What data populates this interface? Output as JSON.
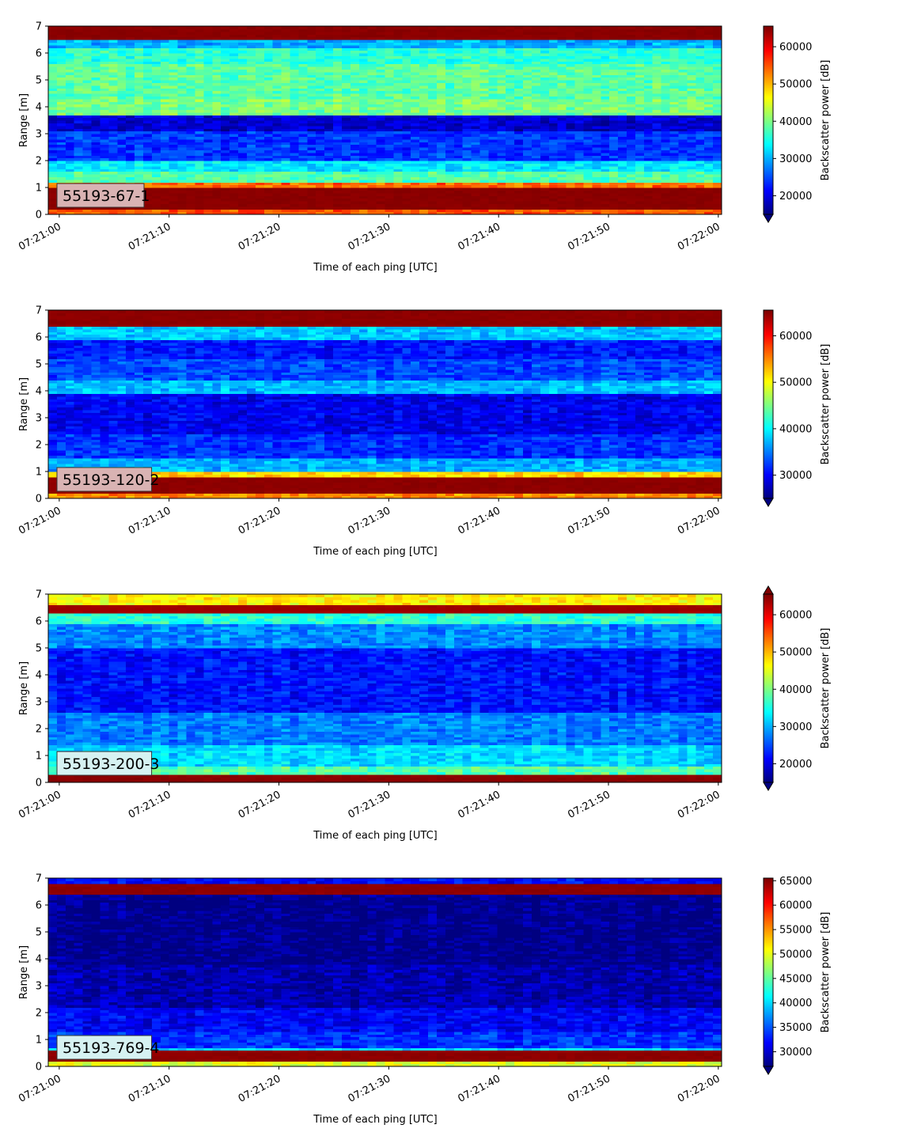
{
  "chart_data": [
    {
      "type": "heatmap",
      "panel_label": "55193-67-1",
      "label_box_color": "#d9b3b3",
      "xlabel": "Time of each ping [UTC]",
      "ylabel": "Range [m]",
      "ylim": [
        0,
        7
      ],
      "yticks": [
        0,
        1,
        2,
        3,
        4,
        5,
        6,
        7
      ],
      "xticks": [
        "07:21:00",
        "07:21:10",
        "07:21:20",
        "07:21:30",
        "07:21:40",
        "07:21:50",
        "07:22:00"
      ],
      "xrange_seconds": [
        -1,
        60.3
      ],
      "colorbar_label": "Backscatter power [dB]",
      "colorbar_range": [
        15000,
        65535
      ],
      "colorbar_ticks": [
        20000,
        30000,
        40000,
        50000,
        60000
      ],
      "colorbar_extend": "min",
      "colormap": "jet",
      "grid": false,
      "bands": [
        {
          "from": 0.0,
          "to": 0.2,
          "value": 55000
        },
        {
          "from": 0.2,
          "to": 1.05,
          "value": 65000
        },
        {
          "from": 1.05,
          "to": 1.25,
          "value": 54000
        },
        {
          "from": 1.25,
          "to": 1.6,
          "value": 38000
        },
        {
          "from": 1.6,
          "to": 2.0,
          "value": 33000
        },
        {
          "from": 2.0,
          "to": 3.1,
          "value": 24000
        },
        {
          "from": 3.1,
          "to": 3.7,
          "value": 19000
        },
        {
          "from": 3.7,
          "to": 4.3,
          "value": 40000
        },
        {
          "from": 4.3,
          "to": 5.6,
          "value": 38500
        },
        {
          "from": 5.6,
          "to": 6.2,
          "value": 36000
        },
        {
          "from": 6.2,
          "to": 6.45,
          "value": 30000
        },
        {
          "from": 6.45,
          "to": 7.0,
          "value": 65000
        }
      ]
    },
    {
      "type": "heatmap",
      "panel_label": "55193-120-2",
      "label_box_color": "#d9b3b3",
      "xlabel": "Time of each ping [UTC]",
      "ylabel": "Range [m]",
      "ylim": [
        0,
        7
      ],
      "yticks": [
        0,
        1,
        2,
        3,
        4,
        5,
        6,
        7
      ],
      "xticks": [
        "07:21:00",
        "07:21:10",
        "07:21:20",
        "07:21:30",
        "07:21:40",
        "07:21:50",
        "07:22:00"
      ],
      "xrange_seconds": [
        -1,
        60.3
      ],
      "colorbar_label": "Backscatter power [dB]",
      "colorbar_range": [
        25000,
        65535
      ],
      "colorbar_ticks": [
        30000,
        40000,
        50000,
        60000
      ],
      "colorbar_extend": "min",
      "colormap": "jet",
      "grid": false,
      "bands": [
        {
          "from": 0.0,
          "to": 0.2,
          "value": 55000
        },
        {
          "from": 0.2,
          "to": 0.8,
          "value": 65000
        },
        {
          "from": 0.8,
          "to": 1.0,
          "value": 52000
        },
        {
          "from": 1.0,
          "to": 1.5,
          "value": 37000
        },
        {
          "from": 1.5,
          "to": 2.4,
          "value": 32000
        },
        {
          "from": 2.4,
          "to": 3.9,
          "value": 29500
        },
        {
          "from": 3.9,
          "to": 4.4,
          "value": 37500
        },
        {
          "from": 4.4,
          "to": 5.2,
          "value": 33000
        },
        {
          "from": 5.2,
          "to": 5.9,
          "value": 31000
        },
        {
          "from": 5.9,
          "to": 6.4,
          "value": 38000
        },
        {
          "from": 6.4,
          "to": 7.0,
          "value": 65000
        }
      ]
    },
    {
      "type": "heatmap",
      "panel_label": "55193-200-3",
      "label_box_color": "#d6f2f2",
      "xlabel": "Time of each ping [UTC]",
      "ylabel": "Range [m]",
      "ylim": [
        0,
        7
      ],
      "yticks": [
        0,
        1,
        2,
        3,
        4,
        5,
        6,
        7
      ],
      "xticks": [
        "07:21:00",
        "07:21:10",
        "07:21:20",
        "07:21:30",
        "07:21:40",
        "07:21:50",
        "07:22:00"
      ],
      "xrange_seconds": [
        -1,
        60.3
      ],
      "colorbar_label": "Backscatter power [dB]",
      "colorbar_range": [
        15000,
        65535
      ],
      "colorbar_ticks": [
        20000,
        30000,
        40000,
        50000,
        60000
      ],
      "colorbar_extend": "both",
      "colormap": "jet",
      "grid": false,
      "bands": [
        {
          "from": 0.0,
          "to": 0.3,
          "value": 65000
        },
        {
          "from": 0.3,
          "to": 0.6,
          "value": 38000
        },
        {
          "from": 0.6,
          "to": 1.4,
          "value": 32000
        },
        {
          "from": 1.4,
          "to": 2.6,
          "value": 27500
        },
        {
          "from": 2.6,
          "to": 5.0,
          "value": 22000
        },
        {
          "from": 5.0,
          "to": 5.9,
          "value": 28000
        },
        {
          "from": 5.9,
          "to": 6.3,
          "value": 36000
        },
        {
          "from": 6.3,
          "to": 6.6,
          "value": 64000
        },
        {
          "from": 6.6,
          "to": 7.0,
          "value": 47000
        }
      ]
    },
    {
      "type": "heatmap",
      "panel_label": "55193-769-4",
      "label_box_color": "#d6f2f2",
      "xlabel": "Time of each ping [UTC]",
      "ylabel": "Range [m]",
      "ylim": [
        0,
        7
      ],
      "yticks": [
        0,
        1,
        2,
        3,
        4,
        5,
        6,
        7
      ],
      "xticks": [
        "07:21:00",
        "07:21:10",
        "07:21:20",
        "07:21:30",
        "07:21:40",
        "07:21:50",
        "07:22:00"
      ],
      "xrange_seconds": [
        -1,
        60.3
      ],
      "colorbar_label": "Backscatter power [dB]",
      "colorbar_range": [
        27000,
        65535
      ],
      "colorbar_ticks": [
        30000,
        35000,
        40000,
        45000,
        50000,
        55000,
        60000,
        65000
      ],
      "colorbar_extend": "min",
      "colormap": "jet",
      "grid": false,
      "bands": [
        {
          "from": 0.0,
          "to": 0.2,
          "value": 50000
        },
        {
          "from": 0.2,
          "to": 0.6,
          "value": 65000
        },
        {
          "from": 0.6,
          "to": 0.75,
          "value": 40000
        },
        {
          "from": 0.75,
          "to": 1.3,
          "value": 33500
        },
        {
          "from": 1.3,
          "to": 2.2,
          "value": 31500
        },
        {
          "from": 2.2,
          "to": 3.8,
          "value": 28800
        },
        {
          "from": 3.8,
          "to": 6.4,
          "value": 27300
        },
        {
          "from": 6.4,
          "to": 6.85,
          "value": 65000
        },
        {
          "from": 6.85,
          "to": 7.0,
          "value": 32000
        }
      ]
    }
  ]
}
